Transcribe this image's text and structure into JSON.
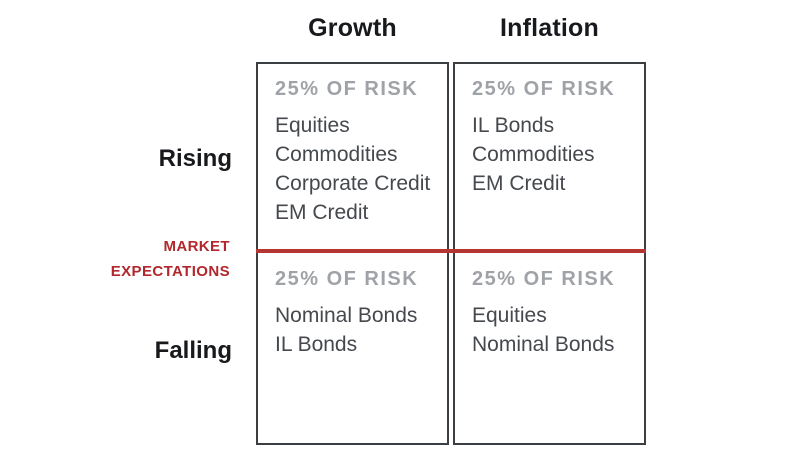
{
  "matrix": {
    "columns": [
      {
        "label": "Growth"
      },
      {
        "label": "Inflation"
      }
    ],
    "rows": [
      {
        "label": "Rising"
      },
      {
        "label": "Falling"
      }
    ],
    "axis_label": {
      "line1": "MARKET",
      "line2": "EXPECTATIONS"
    },
    "quadrants": [
      {
        "row": "Rising",
        "column": "Growth",
        "risk_label": "25% OF RISK",
        "assets": [
          "Equities",
          "Commodities",
          "Corporate Credit",
          "EM Credit"
        ]
      },
      {
        "row": "Rising",
        "column": "Inflation",
        "risk_label": "25% OF RISK",
        "assets": [
          "IL Bonds",
          "Commodities",
          "EM Credit"
        ]
      },
      {
        "row": "Falling",
        "column": "Growth",
        "risk_label": "25% OF RISK",
        "assets": [
          "Nominal Bonds",
          "IL Bonds"
        ]
      },
      {
        "row": "Falling",
        "column": "Inflation",
        "risk_label": "25% OF RISK",
        "assets": [
          "Equities",
          "Nominal Bonds"
        ]
      }
    ],
    "colors": {
      "accent_red": "#b2272b",
      "line_red": "#b43531",
      "risk_gray": "#9fa3a7",
      "text_dark": "#45494e",
      "heading_black": "#17191c",
      "border_gray": "#3c3f42"
    }
  }
}
